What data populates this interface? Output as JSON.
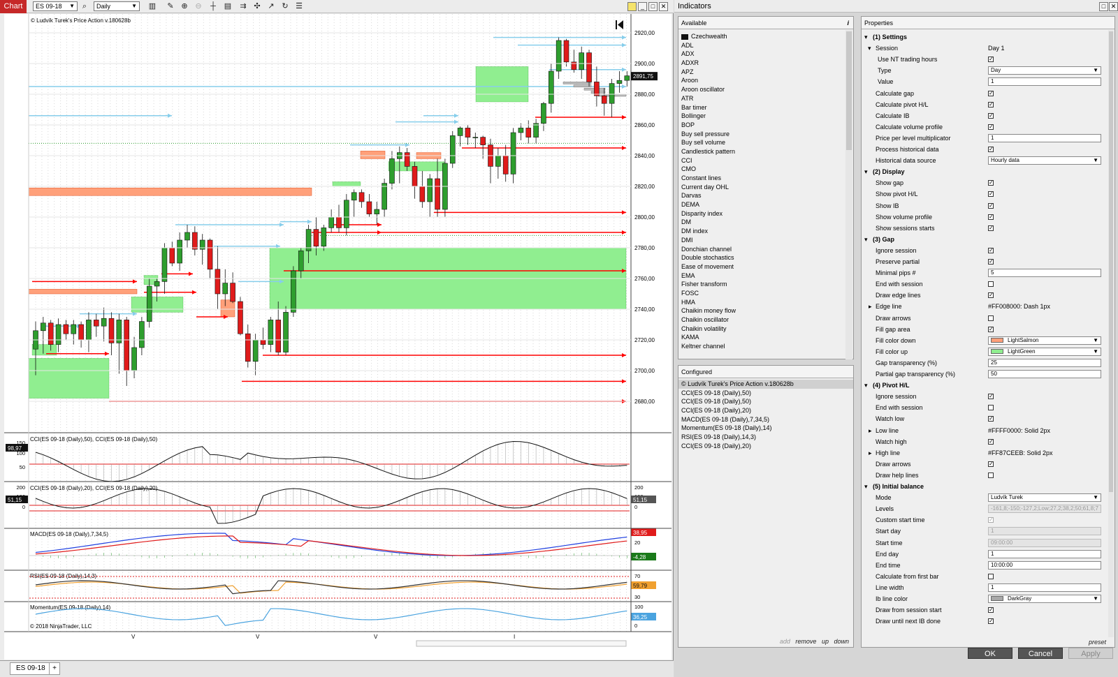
{
  "toolbar": {
    "title": "Chart",
    "instrument": "ES 09-18",
    "interval": "Daily"
  },
  "chart": {
    "price_action_label": "© Ludvík Turek's Price Action v.180628b",
    "copyright": "© 2018 NinjaTrader, LLC",
    "price_axis": [
      "2920,00",
      "2900,00",
      "2880,00",
      "2860,00",
      "2840,00",
      "2820,00",
      "2800,00",
      "2780,00",
      "2760,00",
      "2740,00",
      "2720,00",
      "2700,00",
      "2680,00"
    ],
    "current_price": "2891,75",
    "x_ticks": [
      "V",
      "V",
      "V",
      "I"
    ],
    "panels": {
      "cci1": {
        "title": "CCI(ES 09-18 (Daily),50), CCI(ES 09-18 (Daily),50)",
        "ticks": [
          "150",
          "100",
          "50"
        ],
        "value": "98,97"
      },
      "cci2": {
        "title": "CCI(ES 09-18 (Daily),20), CCI(ES 09-18 (Daily),20)",
        "ticks_left": [
          "200",
          "100",
          "0"
        ],
        "ticks_right": [
          "200",
          "100",
          "0"
        ],
        "value_left": "51,15",
        "value_right": "51,15"
      },
      "macd": {
        "title": "MACD(ES 09-18 (Daily),7,34,5)",
        "ticks": [
          "20"
        ],
        "value_top": "38,95",
        "value_bottom": "-4,28"
      },
      "rsi": {
        "title": "RSI(ES 09-18 (Daily),14,3)",
        "ticks": [
          "70",
          "30"
        ],
        "value": "59,79"
      },
      "momentum": {
        "title": "Momentum(ES 09-18 (Daily),14)",
        "ticks": [
          "100",
          "50",
          "0"
        ],
        "value": "36,25"
      }
    },
    "colors": {
      "up": "#2e9e2e",
      "down": "#e01b1b",
      "gap_up": "#90ee90",
      "gap_down": "#ffa07a",
      "pivot_low": "#ff0000",
      "pivot_high": "#87ceeb"
    }
  },
  "tabs": {
    "active": "ES 09-18",
    "add": "+"
  },
  "indicators": {
    "title": "Indicators",
    "available_header": "Available",
    "available_info": "i",
    "folder": "Czechwealth",
    "available": [
      "ADL",
      "ADX",
      "ADXR",
      "APZ",
      "Aroon",
      "Aroon oscillator",
      "ATR",
      "Bar timer",
      "Bollinger",
      "BOP",
      "Buy sell pressure",
      "Buy sell volume",
      "Candlestick pattern",
      "CCI",
      "CMO",
      "Constant lines",
      "Current day OHL",
      "Darvas",
      "DEMA",
      "Disparity index",
      "DM",
      "DM index",
      "DMI",
      "Donchian channel",
      "Double stochastics",
      "Ease of movement",
      "EMA",
      "Fisher transform",
      "FOSC",
      "HMA",
      "Chaikin money flow",
      "Chaikin oscillator",
      "Chaikin volatility",
      "KAMA",
      "Keltner channel"
    ],
    "configured_header": "Configured",
    "configured": [
      "© Ludvík Turek's Price Action v.180628b",
      "CCI(ES 09-18 (Daily),50)",
      "CCI(ES 09-18 (Daily),50)",
      "CCI(ES 09-18 (Daily),20)",
      "MACD(ES 09-18 (Daily),7,34,5)",
      "Momentum(ES 09-18 (Daily),14)",
      "RSI(ES 09-18 (Daily),14,3)",
      "CCI(ES 09-18 (Daily),20)"
    ],
    "actions": {
      "add": "add",
      "remove": "remove",
      "up": "up",
      "down": "down"
    },
    "properties_header": "Properties",
    "preset": "preset",
    "buttons": {
      "ok": "OK",
      "cancel": "Cancel",
      "apply": "Apply"
    }
  },
  "properties": [
    {
      "kind": "section",
      "label": "(1) Settings"
    },
    {
      "kind": "group",
      "label": "Session",
      "value": "Day 1"
    },
    {
      "kind": "check",
      "label": "Use NT trading hours",
      "checked": true,
      "indent": 3
    },
    {
      "kind": "select",
      "label": "Type",
      "value": "Day",
      "indent": 3
    },
    {
      "kind": "input",
      "label": "Value",
      "value": "1",
      "indent": 3
    },
    {
      "kind": "check",
      "label": "Calculate gap",
      "checked": true
    },
    {
      "kind": "check",
      "label": "Calculate pivot H/L",
      "checked": true
    },
    {
      "kind": "check",
      "label": "Calculate IB",
      "checked": true
    },
    {
      "kind": "check",
      "label": "Calculate volume profile",
      "checked": true
    },
    {
      "kind": "input",
      "label": "Price per level multiplicator",
      "value": "1"
    },
    {
      "kind": "check",
      "label": "Process historical data",
      "checked": true
    },
    {
      "kind": "select",
      "label": "Historical data source",
      "value": "Hourly data"
    },
    {
      "kind": "section",
      "label": "(2) Display"
    },
    {
      "kind": "check",
      "label": "Show gap",
      "checked": true
    },
    {
      "kind": "check",
      "label": "Show pivot H/L",
      "checked": true
    },
    {
      "kind": "check",
      "label": "Show IB",
      "checked": true
    },
    {
      "kind": "check",
      "label": "Show volume profile",
      "checked": true
    },
    {
      "kind": "check",
      "label": "Show sessions starts",
      "checked": true
    },
    {
      "kind": "section",
      "label": "(3) Gap"
    },
    {
      "kind": "check",
      "label": "Ignore session",
      "checked": true
    },
    {
      "kind": "check",
      "label": "Preserve partial",
      "checked": true
    },
    {
      "kind": "input",
      "label": "Minimal pips #",
      "value": "5"
    },
    {
      "kind": "check",
      "label": "End with session",
      "checked": false
    },
    {
      "kind": "check",
      "label": "Draw edge lines",
      "checked": true
    },
    {
      "kind": "expand",
      "label": "Edge line",
      "value": "#FF008000: Dash 1px"
    },
    {
      "kind": "check",
      "label": "Draw arrows",
      "checked": false
    },
    {
      "kind": "check",
      "label": "Fill gap area",
      "checked": true
    },
    {
      "kind": "color",
      "label": "Fill color down",
      "value": "LightSalmon",
      "color": "#ffa07a"
    },
    {
      "kind": "color",
      "label": "Fill color up",
      "value": "LightGreen",
      "color": "#90ee90"
    },
    {
      "kind": "input",
      "label": "Gap transparency (%)",
      "value": "25"
    },
    {
      "kind": "input",
      "label": "Partial gap transparency (%)",
      "value": "50"
    },
    {
      "kind": "section",
      "label": "(4) Pivot H/L"
    },
    {
      "kind": "check",
      "label": "Ignore session",
      "checked": true
    },
    {
      "kind": "check",
      "label": "End with session",
      "checked": false
    },
    {
      "kind": "check",
      "label": "Watch low",
      "checked": true
    },
    {
      "kind": "expand",
      "label": "Low line",
      "value": "#FFFF0000: Solid 2px"
    },
    {
      "kind": "check",
      "label": "Watch high",
      "checked": true
    },
    {
      "kind": "expand",
      "label": "High line",
      "value": "#FF87CEEB: Solid 2px"
    },
    {
      "kind": "check",
      "label": "Draw arrows",
      "checked": true
    },
    {
      "kind": "check",
      "label": "Draw help lines",
      "checked": false
    },
    {
      "kind": "section",
      "label": "(5) Initial balance"
    },
    {
      "kind": "select",
      "label": "Mode",
      "value": "Ludvík Turek"
    },
    {
      "kind": "input",
      "label": "Levels",
      "value": "-161,8;-150;-127,2;Low;27,2;38,2;50;61,8;7",
      "disabled": true
    },
    {
      "kind": "check",
      "label": "Custom start time",
      "checked": true,
      "disabled": true
    },
    {
      "kind": "input",
      "label": "Start day",
      "value": "1",
      "disabled": true
    },
    {
      "kind": "input",
      "label": "Start time",
      "value": "09:00:00",
      "disabled": true
    },
    {
      "kind": "input",
      "label": "End day",
      "value": "1"
    },
    {
      "kind": "input",
      "label": "End time",
      "value": "10:00:00"
    },
    {
      "kind": "check",
      "label": "Calculate from first bar",
      "checked": false
    },
    {
      "kind": "input",
      "label": "Line width",
      "value": "1"
    },
    {
      "kind": "color",
      "label": "Ib line color",
      "value": "DarkGray",
      "color": "#a9a9a9"
    },
    {
      "kind": "check",
      "label": "Draw from session start",
      "checked": true
    },
    {
      "kind": "check",
      "label": "Draw until next IB done",
      "checked": true
    }
  ]
}
